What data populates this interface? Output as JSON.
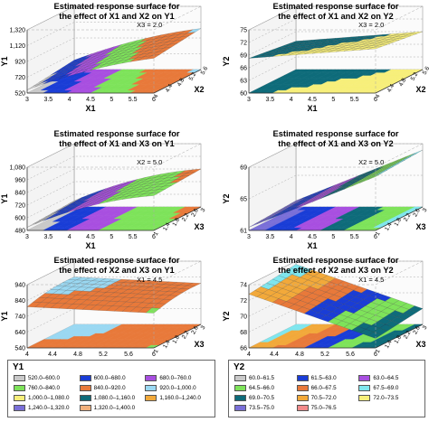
{
  "chart_data": [
    {
      "type": "surface3d",
      "title": "Estimated response surface for the effect of X1 and X2 on Y1",
      "title_lines": [
        "Estimated response surface for",
        "the effect of X1 and X2 on Y1"
      ],
      "xlabel": "X1",
      "ylabel": "Y1",
      "zlabel": "X2",
      "x_ticks": [
        "3",
        "3.5",
        "4",
        "4.5",
        "5",
        "5.5",
        "6"
      ],
      "y_ticks": [
        "520",
        "720",
        "920",
        "1,120",
        "1,320"
      ],
      "z_ticks": [
        "4",
        "4.4",
        "4.8",
        "5.2",
        "5.6"
      ],
      "ylim": [
        520,
        1320
      ],
      "annotation": "X3 = 2.0",
      "legend": "Y1"
    },
    {
      "type": "surface3d",
      "title": "Estimated response surface for the effect of X1 and X2 on Y2",
      "title_lines": [
        "Estimated response surface for",
        "the effect of X1 and X2 on Y2"
      ],
      "xlabel": "X1",
      "ylabel": "Y2",
      "zlabel": "X2",
      "x_ticks": [
        "3",
        "3.5",
        "4",
        "4.5",
        "5",
        "5.5",
        "6"
      ],
      "y_ticks": [
        "60",
        "63",
        "66",
        "69",
        "72",
        "75"
      ],
      "z_ticks": [
        "4",
        "4.4",
        "4.8",
        "5.2",
        "5.6"
      ],
      "ylim": [
        60,
        75
      ],
      "annotation": "X3 = 2.0",
      "legend": "Y2"
    },
    {
      "type": "surface3d",
      "title": "Estimated response surface for the effect of X1 and X3 on Y1",
      "title_lines": [
        "Estimated response surface for",
        "the effect of X1 and X3 on Y1"
      ],
      "xlabel": "X1",
      "ylabel": "Y1",
      "zlabel": "X3",
      "x_ticks": [
        "3",
        "3.5",
        "4",
        "4.5",
        "5",
        "5.5",
        "6"
      ],
      "y_ticks": [
        "480",
        "600",
        "720",
        "840",
        "960",
        "1,080"
      ],
      "z_ticks": [
        "1",
        "1.4",
        "1.8",
        "2.2",
        "2.6",
        "3"
      ],
      "ylim": [
        480,
        1080
      ],
      "annotation": "X2 = 5.0",
      "legend": "Y1"
    },
    {
      "type": "surface3d",
      "title": "Estimated response surface for the effect of X1 and X3 on Y2",
      "title_lines": [
        "Estimated response surface for",
        "the effect of X1 and X3 on Y2"
      ],
      "xlabel": "X1",
      "ylabel": "Y2",
      "zlabel": "X3",
      "x_ticks": [
        "3",
        "3.5",
        "4",
        "4.5",
        "5",
        "5.5",
        "6"
      ],
      "y_ticks": [
        "61",
        "65",
        "69"
      ],
      "z_ticks": [
        "1",
        "1.4",
        "1.8",
        "2.2",
        "2.6",
        "3"
      ],
      "ylim": [
        61,
        69
      ],
      "annotation": "X2 = 5.0",
      "legend": "Y2"
    },
    {
      "type": "surface3d",
      "title": "Estimated response surface for the effect of X2 and X3 on Y1",
      "title_lines": [
        "Estimated response surface for",
        "the effect of X2 and X3 on Y1"
      ],
      "xlabel": "X2",
      "ylabel": "Y1",
      "zlabel": "X3",
      "x_ticks": [
        "4",
        "4.4",
        "4.8",
        "5.2",
        "5.6",
        "6"
      ],
      "y_ticks": [
        "540",
        "640",
        "740",
        "840",
        "940"
      ],
      "z_ticks": [
        "1",
        "1.4",
        "1.8",
        "2.2",
        "2.6",
        "3"
      ],
      "ylim": [
        540,
        940
      ],
      "annotation": "X1 = 4.5",
      "legend": "Y1"
    },
    {
      "type": "surface3d",
      "title": "Estimated response surface for the effect of X2 and X3 on Y2",
      "title_lines": [
        "Estimated response surface for",
        "the effect of X2 and X3 on Y2"
      ],
      "xlabel": "X2",
      "ylabel": "Y2",
      "zlabel": "X3",
      "x_ticks": [
        "4",
        "4.4",
        "4.8",
        "5.2",
        "5.6",
        "6"
      ],
      "y_ticks": [
        "66",
        "68",
        "70",
        "72",
        "74"
      ],
      "z_ticks": [
        "1",
        "1.4",
        "1.8",
        "2.2",
        "2.6",
        "3"
      ],
      "ylim": [
        66,
        74
      ],
      "annotation": "X1 = 4.5",
      "legend": "Y2"
    }
  ],
  "legends": {
    "Y1": {
      "title": "Y1",
      "columns": 3,
      "items": [
        {
          "label": "520.0–600.0",
          "color": "#c9c9c9"
        },
        {
          "label": "600.0–680.0",
          "color": "#1a3dd6"
        },
        {
          "label": "680.0–760.0",
          "color": "#a84fe0"
        },
        {
          "label": "760.0–840.0",
          "color": "#7ee35a"
        },
        {
          "label": "840.0–920.0",
          "color": "#e8793a"
        },
        {
          "label": "920.0–1,000.0",
          "color": "#9ad8f2"
        },
        {
          "label": "1,000.0–1,080.0",
          "color": "#f7ef7a"
        },
        {
          "label": "1,080.0–1,160.0",
          "color": "#0e6b7a"
        },
        {
          "label": "1,160.0–1,240.0",
          "color": "#f2a93a"
        },
        {
          "label": "1,240.0–1,320.0",
          "color": "#7a6fd8"
        },
        {
          "label": "1,320.0–1,400.0",
          "color": "#f2b07c"
        }
      ]
    },
    "Y2": {
      "title": "Y2",
      "columns": 3,
      "items": [
        {
          "label": "60.0–61.5",
          "color": "#c9c9c9"
        },
        {
          "label": "61.5–63.0",
          "color": "#1a3dd6"
        },
        {
          "label": "63.0–64.5",
          "color": "#a84fe0"
        },
        {
          "label": "64.5–66.0",
          "color": "#7ee35a"
        },
        {
          "label": "66.0–67.5",
          "color": "#e8793a"
        },
        {
          "label": "67.5–69.0",
          "color": "#7fe6ee"
        },
        {
          "label": "69.0–70.5",
          "color": "#0e6b7a"
        },
        {
          "label": "70.5–72.0",
          "color": "#f2a93a"
        },
        {
          "label": "72.0–73.5",
          "color": "#f7ef7a"
        },
        {
          "label": "73.5–75.0",
          "color": "#7a6fd8"
        },
        {
          "label": "75.0–76.5",
          "color": "#f28a8a"
        }
      ]
    }
  }
}
